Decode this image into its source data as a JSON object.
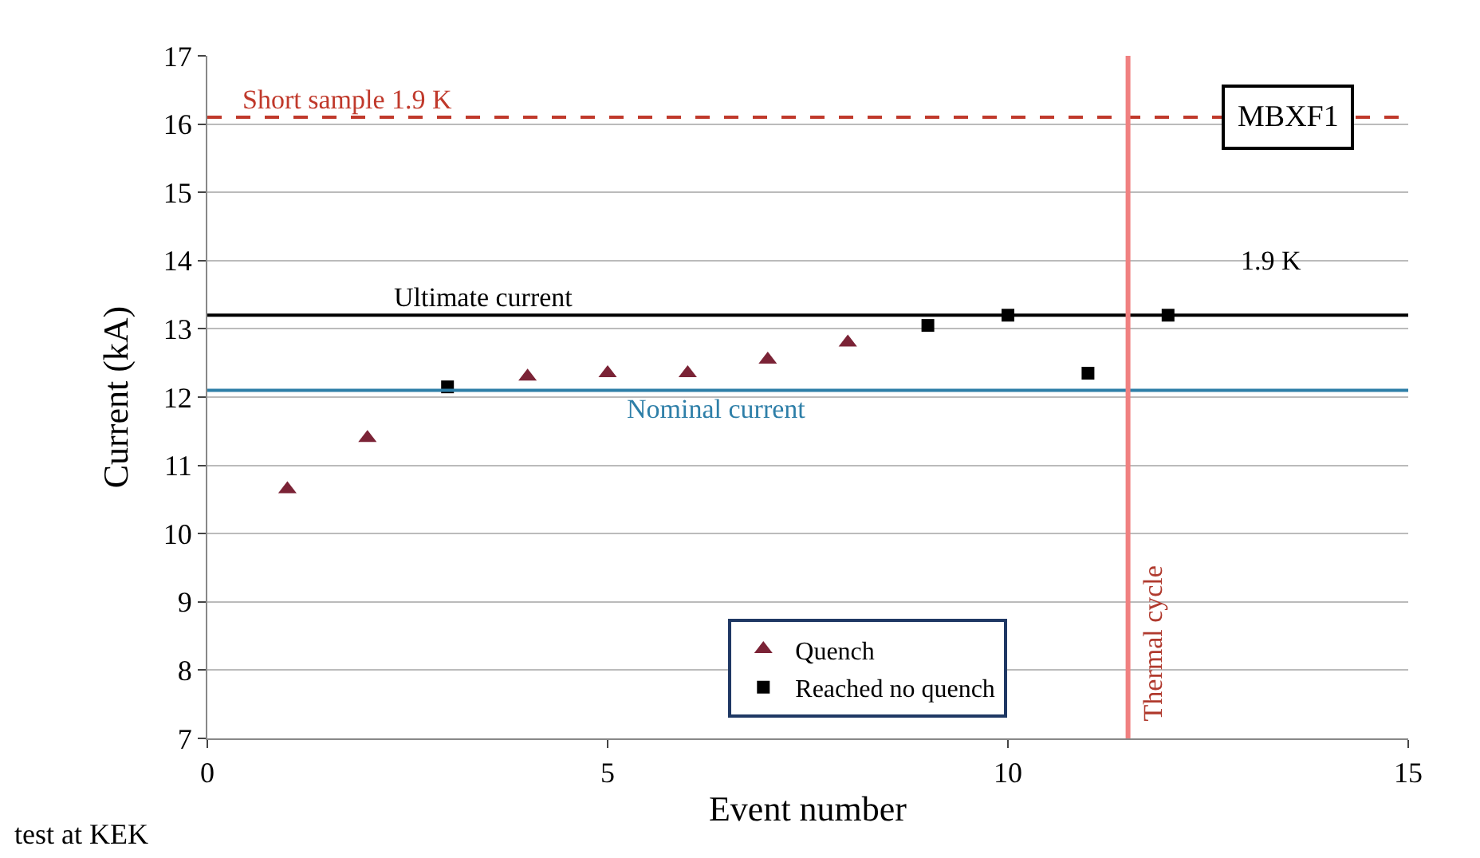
{
  "chart_data": {
    "type": "scatter",
    "xlabel": "Event number",
    "ylabel": "Current (kA)",
    "xlim": [
      0,
      15
    ],
    "xticks": [
      0,
      5,
      10,
      15
    ],
    "ylim": [
      7,
      17
    ],
    "yticks": [
      7,
      8,
      9,
      10,
      11,
      12,
      13,
      14,
      15,
      16,
      17
    ],
    "grid": "y",
    "legend": "bottom",
    "series": [
      {
        "name": "Quench",
        "color": "#7b2336",
        "marker": "triangle",
        "x": [
          1,
          2,
          4,
          5,
          6,
          7,
          8
        ],
        "values": [
          10.65,
          11.4,
          12.3,
          12.35,
          12.35,
          12.55,
          12.8
        ]
      },
      {
        "name": "Reached no quench",
        "color": "#000000",
        "marker": "square",
        "x": [
          3,
          9,
          10,
          11,
          12
        ],
        "values": [
          12.15,
          13.05,
          13.2,
          12.35,
          13.2
        ]
      }
    ],
    "ref_lines": [
      {
        "axis": "y",
        "value": 16.1,
        "label": "Short sample 1.9 K",
        "color": "#c0392b",
        "line_style": "dashed"
      },
      {
        "axis": "y",
        "value": 13.2,
        "label": "Ultimate current",
        "color": "#000000",
        "line_style": "solid"
      },
      {
        "axis": "y",
        "value": 12.1,
        "label": "Nominal current",
        "color": "#2e7fa8",
        "line_style": "solid"
      },
      {
        "axis": "x",
        "value": 11.5,
        "label": "Thermal cycle",
        "color": "#f08080",
        "line_style": "solid"
      }
    ],
    "annotations": [
      "MBXF1",
      "1.9 K",
      "test at KEK"
    ]
  }
}
